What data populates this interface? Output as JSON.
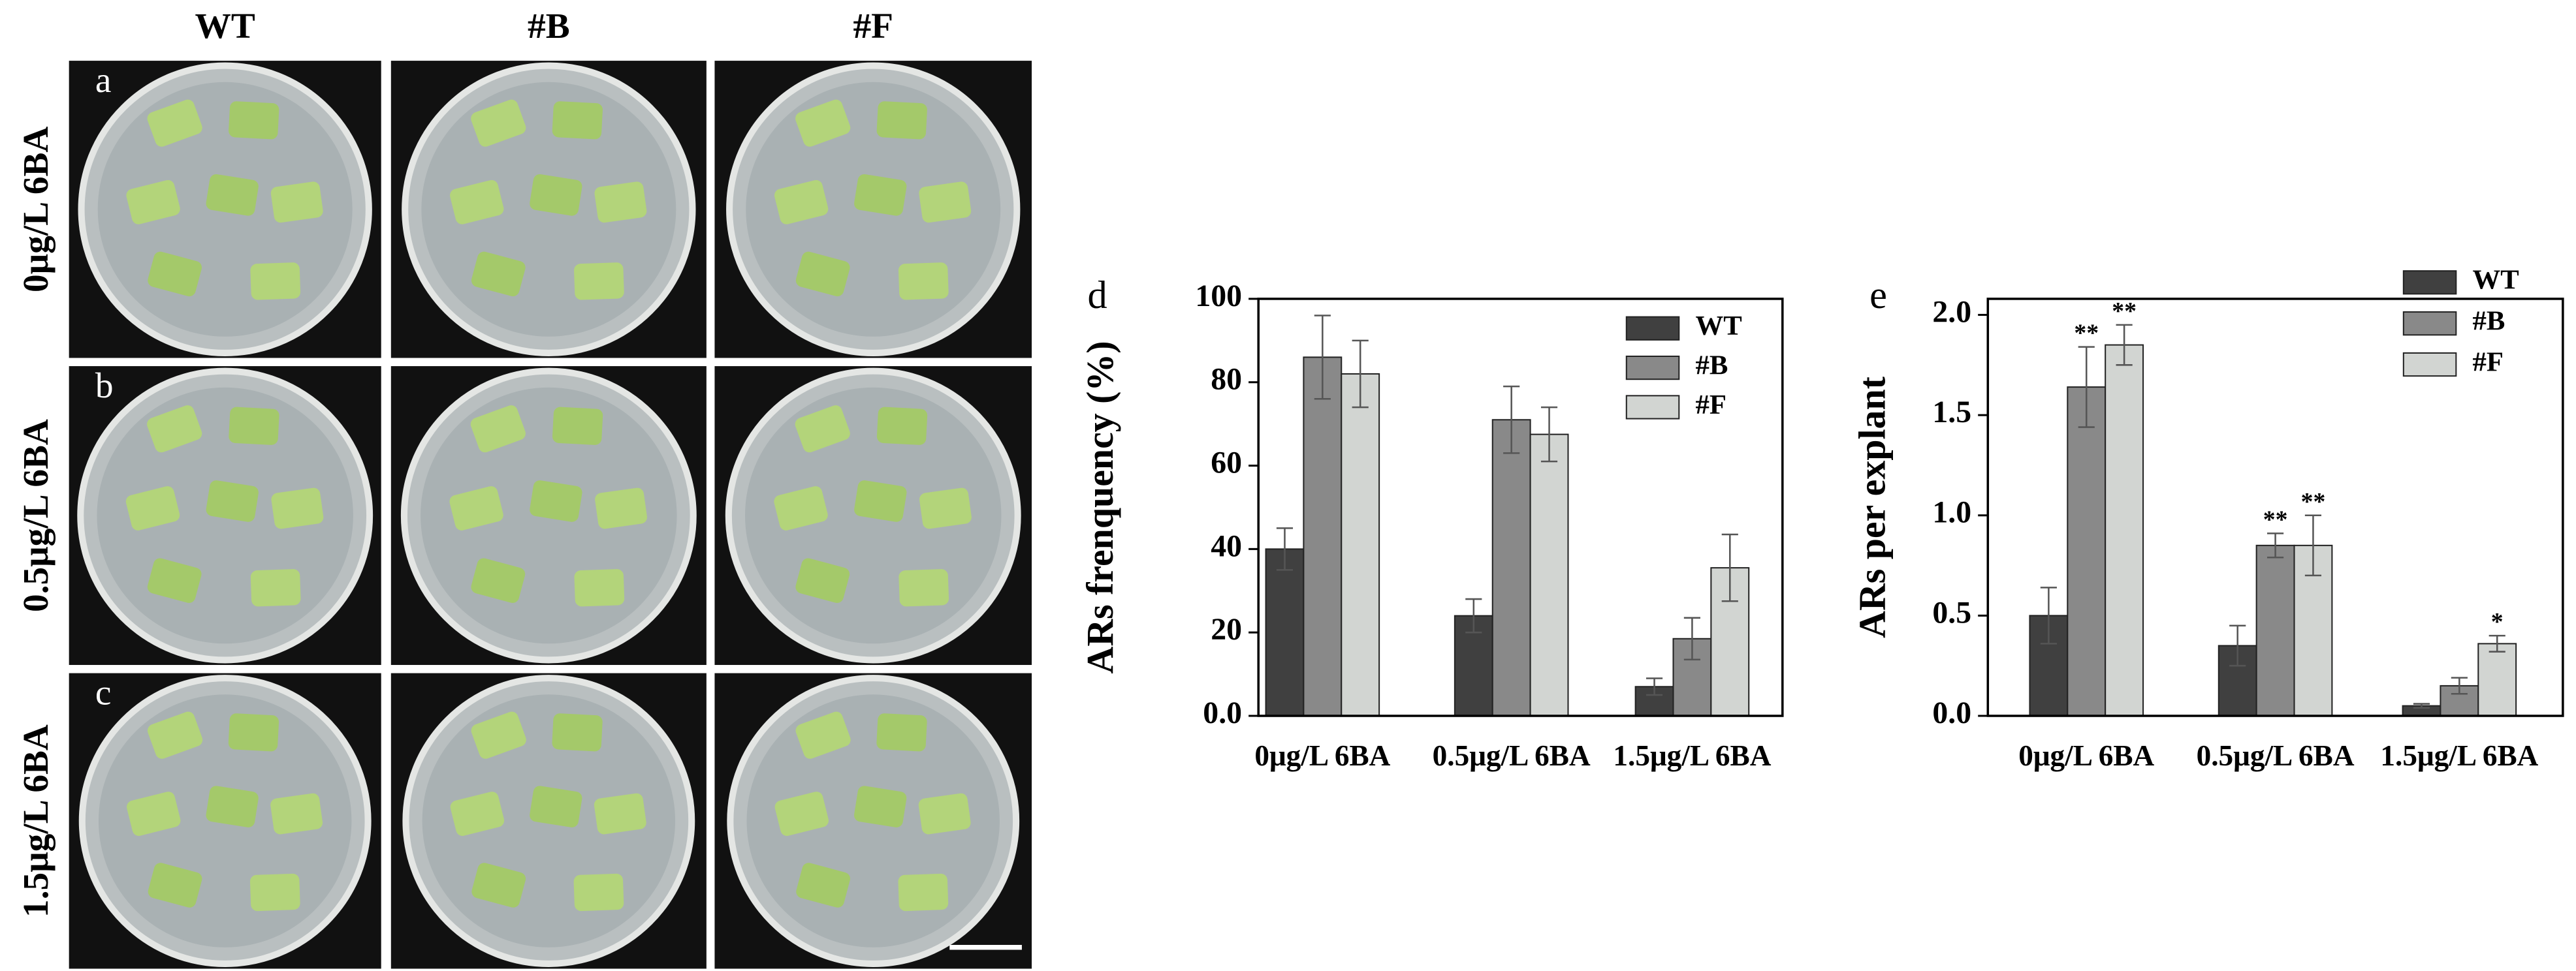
{
  "photo_panel": {
    "columns": [
      "WT",
      "#B",
      "#F"
    ],
    "rows": [
      "0μg/L 6BA",
      "0.5μg/L 6BA",
      "1.5μg/L 6BA"
    ],
    "letters": [
      "a",
      "b",
      "c"
    ]
  },
  "chart_data": [
    {
      "type": "bar",
      "panel_label": "d",
      "y_label": "ARs frenquency (%)",
      "categories": [
        "0μg/L 6BA",
        "0.5μg/L 6BA",
        "1.5μg/L 6BA"
      ],
      "series": [
        {
          "name": "WT",
          "color": "#404040",
          "values": [
            40,
            24,
            7
          ],
          "errors": [
            5,
            4,
            2
          ]
        },
        {
          "name": "#B",
          "color": "#898989",
          "values": [
            86,
            71,
            18.5
          ],
          "errors": [
            10,
            8,
            5
          ]
        },
        {
          "name": "#F",
          "color": "#d2d5d2",
          "values": [
            82,
            67.5,
            35.5
          ],
          "errors": [
            8,
            6.5,
            8
          ]
        }
      ],
      "ylim": [
        0,
        100
      ],
      "yticks": [
        {
          "value": 0,
          "label": "0.0"
        },
        20,
        40,
        60,
        80,
        100
      ],
      "legend": "upper right"
    },
    {
      "type": "bar",
      "panel_label": "e",
      "y_label": "ARs per explant",
      "categories": [
        "0μg/L 6BA",
        "0.5μg/L 6BA",
        "1.5μg/L 6BA"
      ],
      "series": [
        {
          "name": "WT",
          "color": "#404040",
          "values": [
            0.5,
            0.35,
            0.05
          ],
          "errors": [
            0.14,
            0.1,
            0.01
          ]
        },
        {
          "name": "#B",
          "color": "#898989",
          "values": [
            1.64,
            0.85,
            0.15
          ],
          "errors": [
            0.2,
            0.06,
            0.04
          ],
          "marks": [
            "**",
            "**",
            null
          ]
        },
        {
          "name": "#F",
          "color": "#d2d5d2",
          "values": [
            1.85,
            0.85,
            0.36
          ],
          "errors": [
            0.1,
            0.15,
            0.04
          ],
          "marks": [
            "**",
            "**",
            "*"
          ]
        }
      ],
      "ylim": [
        0,
        2.08
      ],
      "yticks": [
        {
          "value": 0,
          "label": "0.0"
        },
        0.5,
        {
          "value": 1,
          "label": "1.0"
        },
        1.5,
        {
          "value": 2,
          "label": "2.0"
        }
      ],
      "legend": "upper right"
    }
  ]
}
